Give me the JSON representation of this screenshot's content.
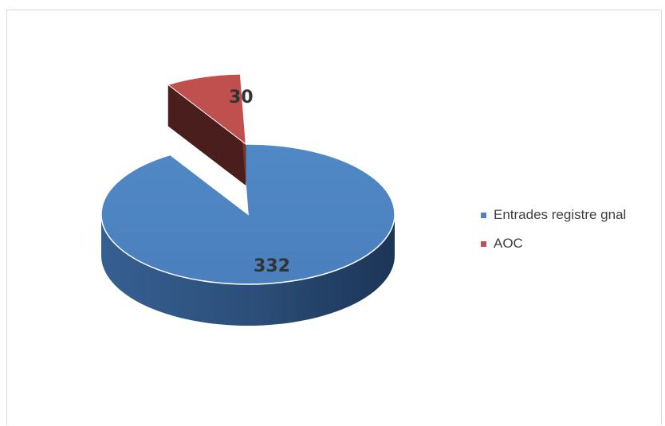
{
  "chart_data": {
    "type": "pie",
    "style": "3d-exploded",
    "series": [
      {
        "categories": [
          "Entrades registre gnal",
          "AOC"
        ],
        "values": [
          332,
          30
        ],
        "colors": [
          "#4f81bd",
          "#c0504d"
        ]
      }
    ],
    "data_labels": [
      "332",
      "30"
    ],
    "legend": {
      "position": "right",
      "entries": [
        "Entrades registre gnal",
        "AOC"
      ]
    }
  }
}
